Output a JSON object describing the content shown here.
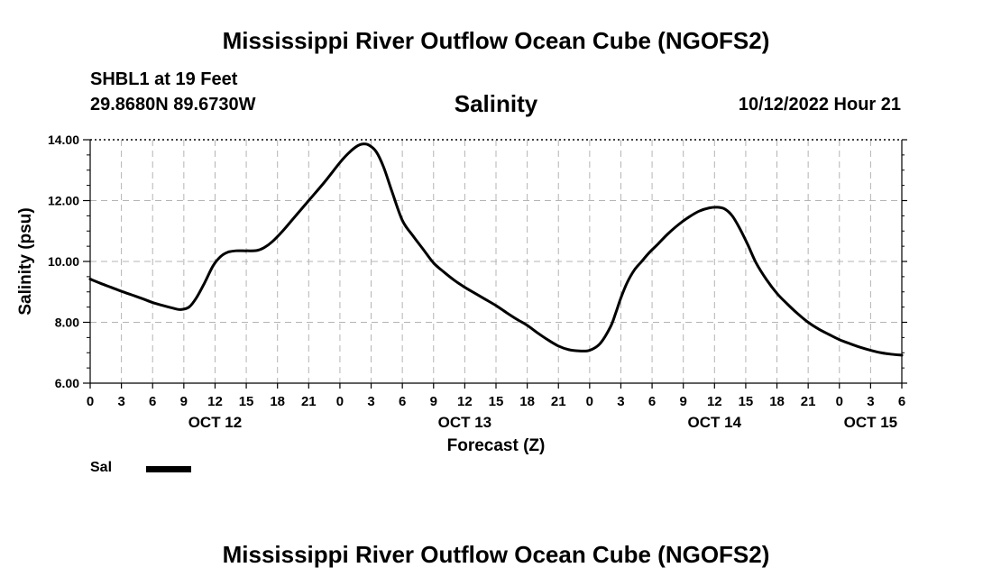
{
  "header": {
    "title": "Mississippi River Outflow Ocean Cube (NGOFS2)",
    "station": "SHBL1 at 19 Feet",
    "coordinates": "29.8680N  89.6730W",
    "plot_title": "Salinity",
    "timestamp": "10/12/2022 Hour 21"
  },
  "footer": {
    "title": "Mississippi River Outflow Ocean Cube (NGOFS2)"
  },
  "legend": {
    "label": "Sal"
  },
  "chart_data": {
    "type": "line",
    "title": "Salinity",
    "xlabel": "Forecast (Z)",
    "ylabel": "Salinity (psu)",
    "xlim": [
      0,
      78
    ],
    "ylim": [
      6,
      14
    ],
    "grid": true,
    "legend_position": "bottom-left",
    "y_ticks": [
      6,
      8,
      10,
      12,
      14
    ],
    "y_tick_labels": [
      "6.00",
      "8.00",
      "10.00",
      "12.00",
      "14.00"
    ],
    "x_ticks": [
      0,
      3,
      6,
      9,
      12,
      15,
      18,
      21,
      24,
      27,
      30,
      33,
      36,
      39,
      42,
      45,
      48,
      51,
      54,
      57,
      60,
      63,
      66,
      69,
      72,
      75,
      78
    ],
    "x_tick_labels": [
      "0",
      "3",
      "6",
      "9",
      "12",
      "15",
      "18",
      "21",
      "0",
      "3",
      "6",
      "9",
      "12",
      "15",
      "18",
      "21",
      "0",
      "3",
      "6",
      "9",
      "12",
      "15",
      "18",
      "21",
      "0",
      "3",
      "6"
    ],
    "date_labels": [
      {
        "label": "OCT 12",
        "x": 12
      },
      {
        "label": "OCT 13",
        "x": 36
      },
      {
        "label": "OCT 14",
        "x": 60
      },
      {
        "label": "OCT 15",
        "x": 75
      }
    ],
    "series": [
      {
        "name": "Sal",
        "color": "#000000",
        "x": [
          0,
          1,
          2,
          3,
          4,
          5,
          6,
          7,
          8,
          8.7,
          9.5,
          10.2,
          11,
          11.8,
          12.5,
          13.2,
          14,
          15,
          16,
          16.7,
          17.5,
          18.5,
          19.5,
          21,
          22.5,
          24,
          24.8,
          25.6,
          26.2,
          26.8,
          27.5,
          28.2,
          29,
          30,
          31,
          32,
          33,
          34,
          35,
          36,
          37,
          38,
          39,
          40,
          41,
          42,
          43,
          44,
          45,
          46,
          47,
          48,
          49,
          50,
          50.5,
          51,
          51.6,
          52.3,
          53,
          53.7,
          54.5,
          55.5,
          56.5,
          57.5,
          58.5,
          59.5,
          60.3,
          61,
          61.7,
          62.4,
          63.2,
          64,
          65,
          66,
          67,
          68,
          69,
          70,
          71,
          72,
          73,
          74,
          75,
          76,
          77,
          78
        ],
        "values": [
          9.42,
          9.28,
          9.15,
          9.02,
          8.9,
          8.78,
          8.65,
          8.55,
          8.46,
          8.42,
          8.5,
          8.8,
          9.3,
          9.85,
          10.15,
          10.3,
          10.35,
          10.35,
          10.36,
          10.45,
          10.65,
          11.0,
          11.4,
          12.0,
          12.6,
          13.25,
          13.55,
          13.78,
          13.86,
          13.82,
          13.6,
          13.1,
          12.3,
          11.35,
          10.85,
          10.4,
          9.95,
          9.65,
          9.38,
          9.15,
          8.95,
          8.75,
          8.55,
          8.32,
          8.1,
          7.9,
          7.65,
          7.42,
          7.22,
          7.1,
          7.06,
          7.08,
          7.3,
          7.85,
          8.3,
          8.8,
          9.3,
          9.72,
          10.0,
          10.28,
          10.55,
          10.9,
          11.2,
          11.45,
          11.65,
          11.76,
          11.78,
          11.72,
          11.5,
          11.1,
          10.55,
          9.95,
          9.4,
          8.95,
          8.6,
          8.28,
          8.0,
          7.78,
          7.6,
          7.43,
          7.3,
          7.18,
          7.08,
          7.0,
          6.95,
          6.92
        ]
      }
    ]
  }
}
